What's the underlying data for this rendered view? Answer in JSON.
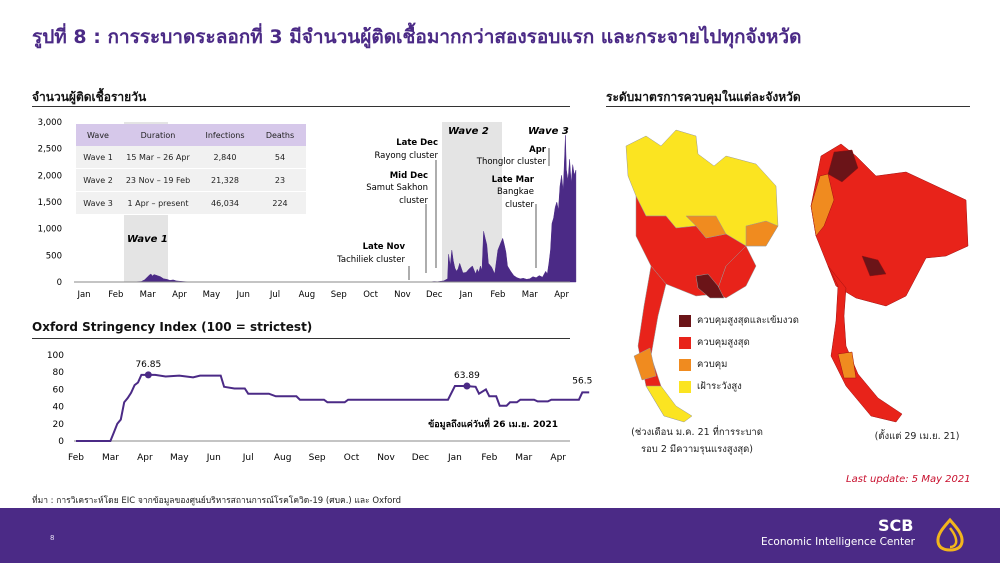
{
  "title": "รูปที่ 8 : การระบาดระลอกที่ 3 มีจำนวนผู้ติดเชื้อมากกว่าสองรอบแรก และกระจายไปทุกจังหวัด",
  "daily_cases_heading": "จำนวนผู้ติดเชื้อรายวัน",
  "map_heading": "ระดับมาตรการควบคุมในแต่ละจังหวัด",
  "table": {
    "headers": [
      "Wave",
      "Duration",
      "Infections",
      "Deaths"
    ],
    "rows": [
      [
        "Wave 1",
        "15 Mar – 26 Apr",
        "2,840",
        "54"
      ],
      [
        "Wave 2",
        "23 Nov – 19 Feb",
        "21,328",
        "23"
      ],
      [
        "Wave 3",
        "1 Apr – present",
        "46,034",
        "224"
      ]
    ]
  },
  "annotations": {
    "wave1": "Wave 1",
    "wave2": "Wave 2",
    "wave3": "Wave 3",
    "late_nov_a": "Late Nov",
    "late_nov_b": "Tachiliek cluster",
    "mid_dec_a": "Mid Dec",
    "mid_dec_b": "Samut Sakhon",
    "mid_dec_c": "cluster",
    "late_dec_a": "Late Dec",
    "late_dec_b": "Rayong cluster",
    "apr_a": "Apr",
    "apr_b": "Thonglor cluster",
    "late_mar_a": "Late Mar",
    "late_mar_b": "Bangkae",
    "late_mar_c": "cluster",
    "osi_peak": "76.85",
    "osi_dec": "63.89",
    "osi_last": "56.5",
    "osi_note": "ข้อมูลถึงแค่วันที่ 26 เม.ย. 2021"
  },
  "legend": [
    {
      "label": "ควบคุมสูงสุดและเข้มงวด",
      "color": "#6b1418"
    },
    {
      "label": "ควบคุมสูงสุด",
      "color": "#e8231a"
    },
    {
      "label": "ควบคุม",
      "color": "#f08b1f"
    },
    {
      "label": "เฝ้าระวังสูง",
      "color": "#fbe421"
    }
  ],
  "map_notes": {
    "left_a": "(ช่วงเดือน ม.ค. 21 ที่การระบาด",
    "left_b": "รอบ 2 มีความรุนแรงสูงสุด)",
    "right": "(ตั้งแต่ 29 เม.ย. 21)"
  },
  "source": "ที่มา : การวิเคราะห์โดย EIC จากข้อมูลของศูนย์บริหารสถานการณ์โรคโควิด-19 (ศบค.) และ Oxford",
  "last_update": "Last update: 5 May 2021",
  "footer": {
    "page_number": "8",
    "brand": "SCB",
    "brand_sub": "Economic Intelligence Center"
  },
  "chart_data": [
    {
      "type": "area",
      "title": "จำนวนผู้ติดเชื้อรายวัน",
      "categories": [
        "Jan",
        "Feb",
        "Mar",
        "Apr",
        "May",
        "Jun",
        "Jul",
        "Aug",
        "Sep",
        "Oct",
        "Nov",
        "Dec",
        "Jan",
        "Feb",
        "Mar",
        "Apr"
      ],
      "ylim": [
        0,
        3000
      ],
      "yticks": [
        0,
        500,
        1000,
        1500,
        2000,
        2500,
        3000
      ],
      "ytick_labels": [
        "0",
        "500",
        "1,000",
        "1,500",
        "2,000",
        "2,500",
        "3,000"
      ],
      "series": [
        {
          "points": [
            [
              0,
              0
            ],
            [
              1.5,
              0
            ],
            [
              1.8,
              10
            ],
            [
              1.9,
              40
            ],
            [
              2.0,
              100
            ],
            [
              2.05,
              130
            ],
            [
              2.1,
              150
            ],
            [
              2.15,
              110
            ],
            [
              2.2,
              140
            ],
            [
              2.3,
              120
            ],
            [
              2.4,
              100
            ],
            [
              2.5,
              60
            ],
            [
              2.6,
              50
            ],
            [
              2.7,
              30
            ],
            [
              2.8,
              40
            ],
            [
              2.9,
              20
            ],
            [
              3.0,
              15
            ],
            [
              3.2,
              5
            ],
            [
              3.5,
              0
            ],
            [
              10.8,
              0
            ],
            [
              10.9,
              3
            ],
            [
              11.0,
              10
            ],
            [
              11.1,
              5
            ],
            [
              11.3,
              20
            ],
            [
              11.42,
              60
            ],
            [
              11.45,
              520
            ],
            [
              11.5,
              300
            ],
            [
              11.55,
              600
            ],
            [
              11.6,
              400
            ],
            [
              11.65,
              260
            ],
            [
              11.7,
              200
            ],
            [
              11.75,
              250
            ],
            [
              11.8,
              350
            ],
            [
              11.9,
              170
            ],
            [
              12.0,
              180
            ],
            [
              12.1,
              250
            ],
            [
              12.2,
              300
            ],
            [
              12.3,
              150
            ],
            [
              12.35,
              240
            ],
            [
              12.4,
              180
            ],
            [
              12.45,
              300
            ],
            [
              12.5,
              220
            ],
            [
              12.55,
              950
            ],
            [
              12.6,
              820
            ],
            [
              12.65,
              700
            ],
            [
              12.7,
              350
            ],
            [
              12.8,
              280
            ],
            [
              12.9,
              150
            ],
            [
              13.0,
              600
            ],
            [
              13.1,
              750
            ],
            [
              13.15,
              820
            ],
            [
              13.2,
              700
            ],
            [
              13.25,
              560
            ],
            [
              13.3,
              300
            ],
            [
              13.4,
              200
            ],
            [
              13.5,
              120
            ],
            [
              13.6,
              80
            ],
            [
              13.7,
              60
            ],
            [
              13.8,
              70
            ],
            [
              13.9,
              50
            ],
            [
              14.0,
              60
            ],
            [
              14.1,
              100
            ],
            [
              14.2,
              80
            ],
            [
              14.3,
              120
            ],
            [
              14.4,
              90
            ],
            [
              14.5,
              200
            ],
            [
              14.55,
              150
            ],
            [
              14.6,
              350
            ],
            [
              14.65,
              600
            ],
            [
              14.7,
              1100
            ],
            [
              14.75,
              1200
            ],
            [
              14.8,
              1400
            ],
            [
              14.85,
              1500
            ],
            [
              14.9,
              1350
            ],
            [
              14.95,
              1800
            ],
            [
              15.0,
              2000
            ],
            [
              15.05,
              1700
            ],
            [
              15.1,
              2450
            ],
            [
              15.12,
              2750
            ],
            [
              15.15,
              2100
            ],
            [
              15.2,
              1900
            ],
            [
              15.25,
              2300
            ],
            [
              15.3,
              1850
            ],
            [
              15.35,
              2200
            ],
            [
              15.4,
              2000
            ],
            [
              15.45,
              2100
            ]
          ]
        }
      ]
    },
    {
      "type": "line",
      "title": "Oxford Stringency Index (100 = strictest)",
      "categories": [
        "Feb",
        "Mar",
        "Apr",
        "May",
        "Jun",
        "Jul",
        "Aug",
        "Sep",
        "Oct",
        "Nov",
        "Dec",
        "Jan",
        "Feb",
        "Mar",
        "Apr"
      ],
      "ylim": [
        0,
        100
      ],
      "yticks": [
        0,
        20,
        40,
        60,
        80,
        100
      ],
      "series": [
        {
          "points": [
            [
              0,
              0
            ],
            [
              1.0,
              0
            ],
            [
              1.1,
              10
            ],
            [
              1.2,
              20
            ],
            [
              1.3,
              25
            ],
            [
              1.4,
              45
            ],
            [
              1.5,
              50
            ],
            [
              1.6,
              56
            ],
            [
              1.7,
              65
            ],
            [
              1.8,
              68
            ],
            [
              1.9,
              76.85
            ],
            [
              2.3,
              76.85
            ],
            [
              2.6,
              75
            ],
            [
              3.0,
              76
            ],
            [
              3.4,
              74
            ],
            [
              3.6,
              76
            ],
            [
              4.2,
              76
            ],
            [
              4.3,
              63
            ],
            [
              4.6,
              61
            ],
            [
              4.9,
              61
            ],
            [
              5.0,
              55
            ],
            [
              5.6,
              55
            ],
            [
              5.8,
              52
            ],
            [
              6.4,
              52
            ],
            [
              6.5,
              48
            ],
            [
              7.2,
              48
            ],
            [
              7.3,
              45
            ],
            [
              7.8,
              45
            ],
            [
              7.9,
              48
            ],
            [
              10.8,
              48
            ],
            [
              11.0,
              64
            ],
            [
              11.2,
              64
            ],
            [
              11.35,
              63.89
            ],
            [
              11.6,
              63
            ],
            [
              11.7,
              55
            ],
            [
              11.9,
              60
            ],
            [
              12.0,
              52
            ],
            [
              12.2,
              52
            ],
            [
              12.3,
              41
            ],
            [
              12.5,
              41
            ],
            [
              12.6,
              45
            ],
            [
              12.8,
              45
            ],
            [
              12.9,
              48
            ],
            [
              13.3,
              48
            ],
            [
              13.4,
              46
            ],
            [
              13.7,
              46
            ],
            [
              13.8,
              48
            ],
            [
              14.6,
              48
            ],
            [
              14.7,
              56.5
            ],
            [
              14.9,
              56.5
            ]
          ]
        }
      ]
    }
  ]
}
